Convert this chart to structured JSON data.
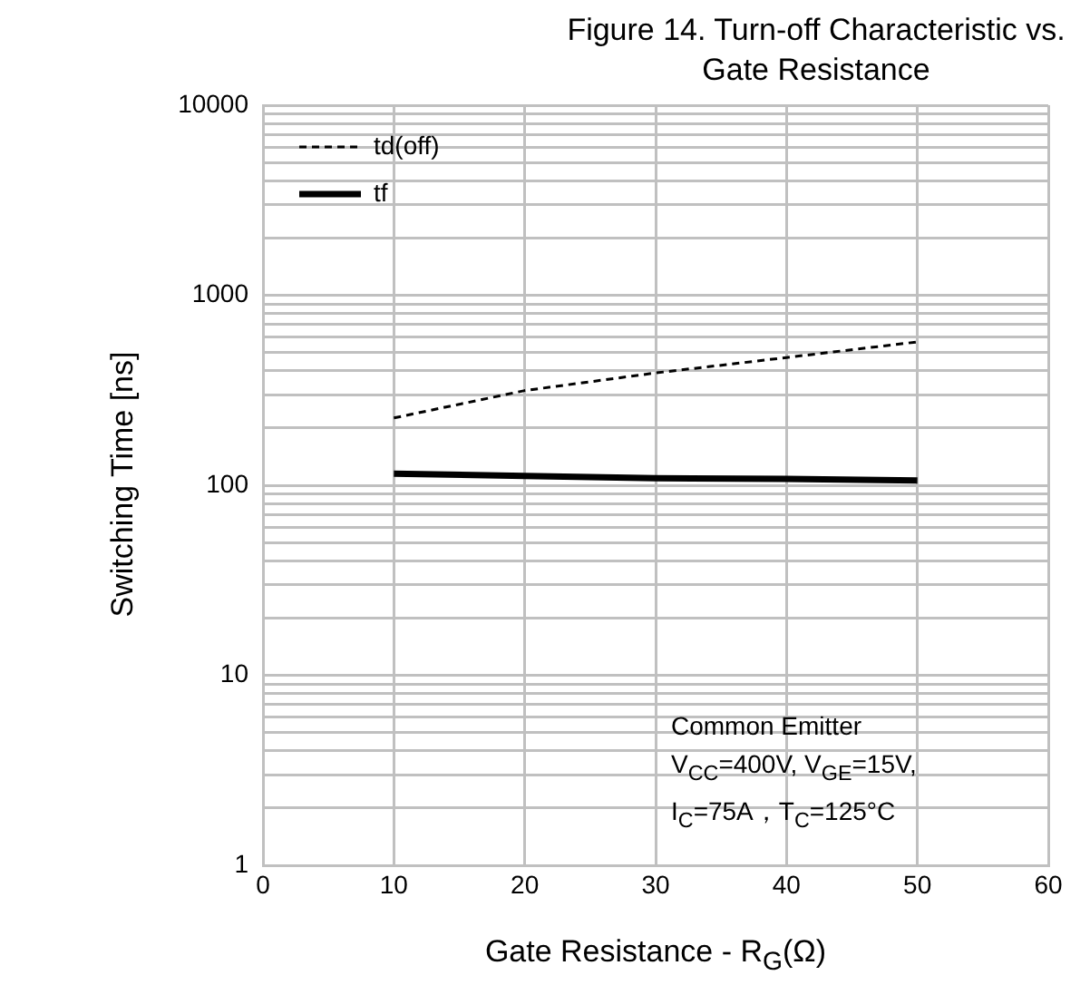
{
  "chart_data": {
    "type": "line",
    "title": "Figure 14. Turn-off Characteristic vs. Gate Resistance",
    "xlabel": "Gate Resistance  - R$_{G}$(Ω)",
    "ylabel": "Switching Time [ns]",
    "x": [
      10,
      20,
      30,
      40,
      50
    ],
    "series": [
      {
        "name": "td(off)",
        "color": "#000000",
        "line_style": "dashed",
        "values": [
          226,
          315,
          390,
          470,
          568
        ]
      },
      {
        "name": "tf",
        "color": "#000000",
        "line_style": "solid",
        "values": [
          115,
          112,
          109,
          108,
          106
        ]
      }
    ],
    "log": "y",
    "xlim": [
      0,
      60
    ],
    "xticks": [
      0,
      10,
      20,
      30,
      40,
      50,
      60
    ],
    "ylim": [
      1,
      10000
    ],
    "yticks": [
      1,
      {
        "value": 2,
        "label": null
      },
      {
        "value": 3,
        "label": null
      },
      {
        "value": 4,
        "label": null
      },
      {
        "value": 5,
        "label": null
      },
      {
        "value": 6,
        "label": null
      },
      {
        "value": 7,
        "label": null
      },
      {
        "value": 8,
        "label": null
      },
      {
        "value": 9,
        "label": null
      },
      10,
      {
        "value": 20,
        "label": null
      },
      {
        "value": 30,
        "label": null
      },
      {
        "value": 40,
        "label": null
      },
      {
        "value": 50,
        "label": null
      },
      {
        "value": 60,
        "label": null
      },
      {
        "value": 70,
        "label": null
      },
      {
        "value": 80,
        "label": null
      },
      {
        "value": 90,
        "label": null
      },
      100,
      {
        "value": 200,
        "label": null
      },
      {
        "value": 300,
        "label": null
      },
      {
        "value": 400,
        "label": null
      },
      {
        "value": 500,
        "label": null
      },
      {
        "value": 600,
        "label": null
      },
      {
        "value": 700,
        "label": null
      },
      {
        "value": 800,
        "label": null
      },
      {
        "value": 900,
        "label": null
      },
      1000,
      {
        "value": 2000,
        "label": null
      },
      {
        "value": 3000,
        "label": null
      },
      {
        "value": 4000,
        "label": null
      },
      {
        "value": 5000,
        "label": null
      },
      {
        "value": 6000,
        "label": null
      },
      {
        "value": 7000,
        "label": null
      },
      {
        "value": 8000,
        "label": null
      },
      {
        "value": 9000,
        "label": null
      },
      10000
    ],
    "grid": true,
    "legend": "top left",
    "marker": "none",
    "annotations": [
      "Common Emitter",
      "V$_{CC}$=400V, V$_{GE}$=15V,",
      "I$_{C}$=75A，T$_{C}$=125°C"
    ]
  }
}
